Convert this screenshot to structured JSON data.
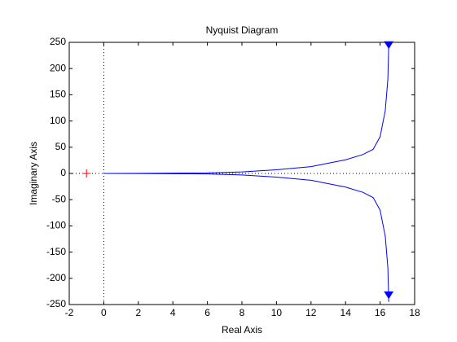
{
  "chart_data": {
    "type": "line",
    "title": "Nyquist Diagram",
    "xlabel": "Real Axis",
    "ylabel": "Imaginary Axis",
    "x": [
      0,
      2,
      4,
      6,
      8,
      10,
      12,
      14,
      15,
      15.6,
      16,
      16.3,
      16.45,
      16.5
    ],
    "series": [
      {
        "color": "#0000ff",
        "values": [
          0,
          0.2,
          0.5,
          1,
          3,
          7,
          13,
          26,
          36,
          46,
          70,
          120,
          180,
          245
        ]
      },
      {
        "color": "#0000ff",
        "values": [
          0,
          -0.2,
          -0.5,
          -1,
          -3,
          -7,
          -13,
          -26,
          -36,
          -46,
          -70,
          -120,
          -180,
          -245
        ]
      }
    ],
    "arrows": [
      {
        "x": 16.5,
        "y": 245,
        "color": "#0000ff"
      },
      {
        "x": 16.5,
        "y": -232,
        "color": "#0000ff"
      }
    ],
    "critical_point": {
      "x": -1,
      "y": 0,
      "color": "#ff0000"
    },
    "xlim": [
      -2,
      18
    ],
    "ylim": [
      -250,
      250
    ],
    "xticks": [
      -2,
      0,
      2,
      4,
      6,
      8,
      10,
      12,
      14,
      16,
      18
    ],
    "yticks": [
      -250,
      -200,
      -150,
      -100,
      -50,
      0,
      50,
      100,
      150,
      200,
      250
    ]
  }
}
